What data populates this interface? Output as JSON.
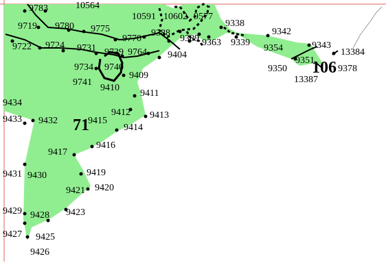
{
  "map": {
    "colors": {
      "region_fill": "#90EE90",
      "boundary": "#000000",
      "border_line": "#e06060",
      "outline": "#999999",
      "background": "#ffffff"
    },
    "regions": [
      {
        "id": "region-71",
        "label": "71"
      },
      {
        "id": "region-106",
        "label": "106"
      }
    ],
    "node_labels": [
      "9783",
      "10564",
      "10591",
      "10602",
      "9577",
      "9338",
      "9719",
      "9780",
      "9775",
      "9770",
      "9388",
      "9342",
      "9722",
      "9724",
      "9731",
      "9739",
      "9764",
      "9404",
      "9389",
      "9363",
      "9339",
      "9343",
      "9354",
      "13384",
      "9734",
      "9740",
      "9409",
      "9350",
      "9351",
      "9378",
      "13387",
      "9741",
      "9410",
      "9411",
      "9434",
      "9412",
      "9413",
      "9433",
      "9432",
      "9415",
      "9414",
      "9416",
      "9417",
      "9431",
      "9430",
      "9419",
      "9421",
      "9420",
      "9429",
      "9428",
      "9423",
      "9427",
      "9425",
      "9426"
    ]
  }
}
